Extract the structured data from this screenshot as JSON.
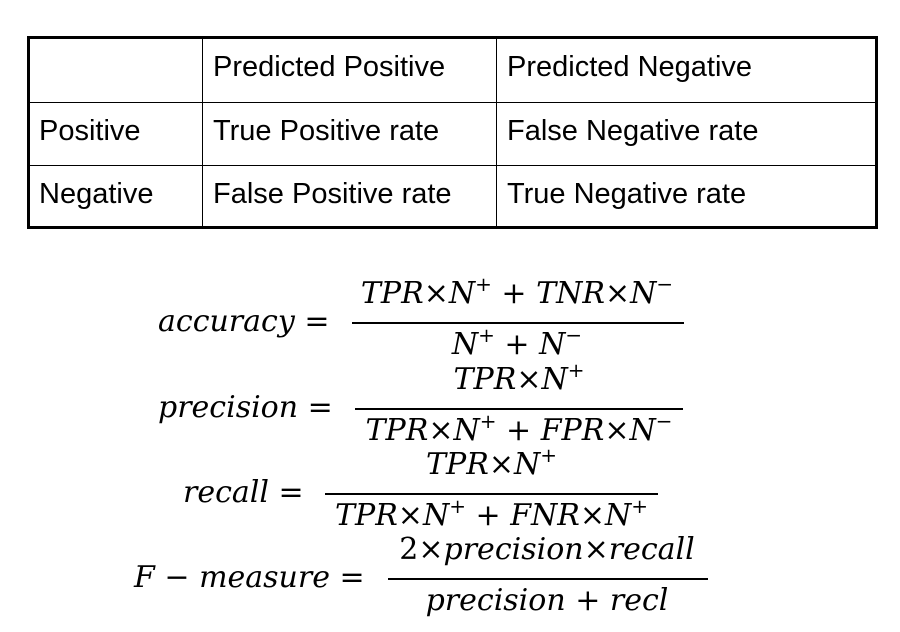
{
  "table": {
    "header": [
      "",
      "Predicted Positive",
      "Predicted Negative"
    ],
    "rows": [
      [
        "Positive",
        "True Positive rate",
        "False Negative rate"
      ],
      [
        "Negative",
        "False Positive rate",
        "True Negative rate"
      ]
    ]
  },
  "formulas": {
    "accuracy": {
      "lhs": "accuracy",
      "num": [
        "TPR",
        "N",
        "TNR",
        "N"
      ],
      "den": [
        "N",
        "N"
      ]
    },
    "precision": {
      "lhs": "precision",
      "num": [
        "TPR",
        "N"
      ],
      "den": [
        "TPR",
        "N",
        "FPR",
        "N"
      ]
    },
    "recall": {
      "lhs": "recall",
      "num": [
        "TPR",
        "N"
      ],
      "den": [
        "TPR",
        "N",
        "FNR",
        "N"
      ]
    },
    "fmeasure": {
      "lhs_a": "F",
      "lhs_b": "measure",
      "num_a": "2",
      "num_b": "precision",
      "num_c": "recall",
      "den_a": "precision",
      "den_b": "recl"
    }
  }
}
